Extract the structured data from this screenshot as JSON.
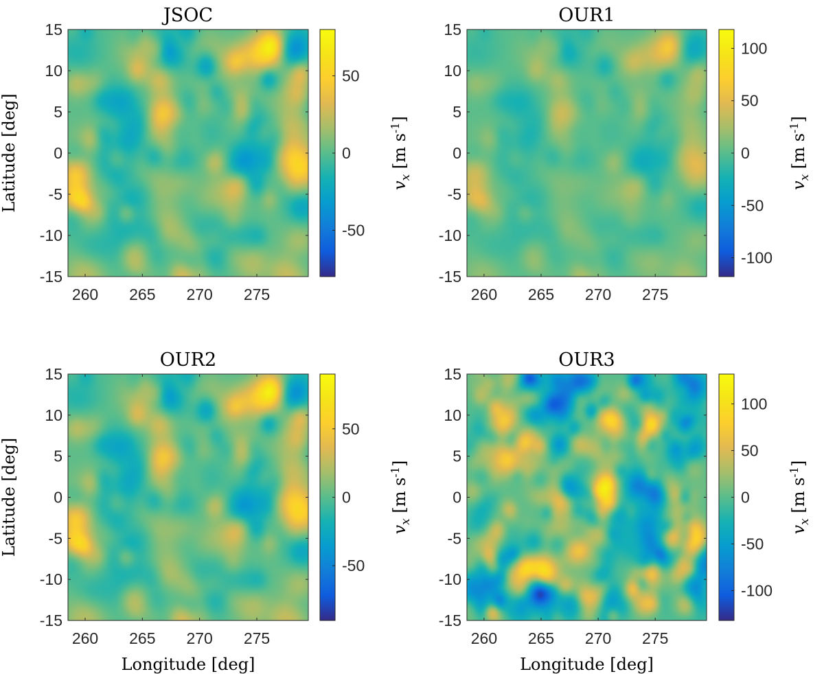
{
  "chart_data": [
    {
      "type": "heatmap",
      "title": "JSOC",
      "xlabel": "",
      "ylabel": "Latitude [deg]",
      "xlim": [
        258.5,
        279.5
      ],
      "ylim": [
        -15,
        15
      ],
      "xticks": [
        "260",
        "265",
        "270",
        "275"
      ],
      "xtick_values": [
        260,
        265,
        270,
        275
      ],
      "yticks": [
        "15",
        "10",
        "5",
        "0",
        "-5",
        "-10",
        "-15"
      ],
      "ytick_values": [
        15,
        10,
        5,
        0,
        -5,
        -10,
        -15
      ],
      "colorbar": {
        "label": "v_x [m s^-1]",
        "range": [
          -80,
          80
        ],
        "ticks": [
          "50",
          "0",
          "-50"
        ],
        "tick_values": [
          50,
          0,
          -50
        ]
      },
      "seed": 11
    },
    {
      "type": "heatmap",
      "title": "OUR1",
      "xlabel": "",
      "ylabel": "",
      "xlim": [
        258.5,
        279.5
      ],
      "ylim": [
        -15,
        15
      ],
      "xticks": [
        "260",
        "265",
        "270",
        "275"
      ],
      "xtick_values": [
        260,
        265,
        270,
        275
      ],
      "yticks": [
        "15",
        "10",
        "5",
        "0",
        "-5",
        "-10",
        "-15"
      ],
      "ytick_values": [
        15,
        10,
        5,
        0,
        -5,
        -10,
        -15
      ],
      "colorbar": {
        "label": "v_x [m s^-1]",
        "range": [
          -118,
          118
        ],
        "ticks": [
          "100",
          "50",
          "0",
          "-50",
          "-100"
        ],
        "tick_values": [
          100,
          50,
          0,
          -50,
          -100
        ]
      },
      "seed": 11
    },
    {
      "type": "heatmap",
      "title": "OUR2",
      "xlabel": "Longitude [deg]",
      "ylabel": "Latitude [deg]",
      "xlim": [
        258.5,
        279.5
      ],
      "ylim": [
        -15,
        15
      ],
      "xticks": [
        "260",
        "265",
        "270",
        "275"
      ],
      "xtick_values": [
        260,
        265,
        270,
        275
      ],
      "yticks": [
        "15",
        "10",
        "5",
        "0",
        "-5",
        "-10",
        "-15"
      ],
      "ytick_values": [
        15,
        10,
        5,
        0,
        -5,
        -10,
        -15
      ],
      "colorbar": {
        "label": "v_x [m s^-1]",
        "range": [
          -90,
          90
        ],
        "ticks": [
          "50",
          "0",
          "-50"
        ],
        "tick_values": [
          50,
          0,
          -50
        ]
      },
      "seed": 11
    },
    {
      "type": "heatmap",
      "title": "OUR3",
      "xlabel": "Longitude [deg]",
      "ylabel": "",
      "xlim": [
        258.5,
        279.5
      ],
      "ylim": [
        -15,
        15
      ],
      "xticks": [
        "260",
        "265",
        "270",
        "275"
      ],
      "xtick_values": [
        260,
        265,
        270,
        275
      ],
      "yticks": [
        "15",
        "10",
        "5",
        "0",
        "-5",
        "-10",
        "-15"
      ],
      "ytick_values": [
        15,
        10,
        5,
        0,
        -5,
        -10,
        -15
      ],
      "colorbar": {
        "label": "v_x [m s^-1]",
        "range": [
          -132,
          132
        ],
        "ticks": [
          "100",
          "50",
          "0",
          "-50",
          "-100"
        ],
        "tick_values": [
          100,
          50,
          0,
          -50,
          -100
        ]
      },
      "seed": 29
    }
  ]
}
